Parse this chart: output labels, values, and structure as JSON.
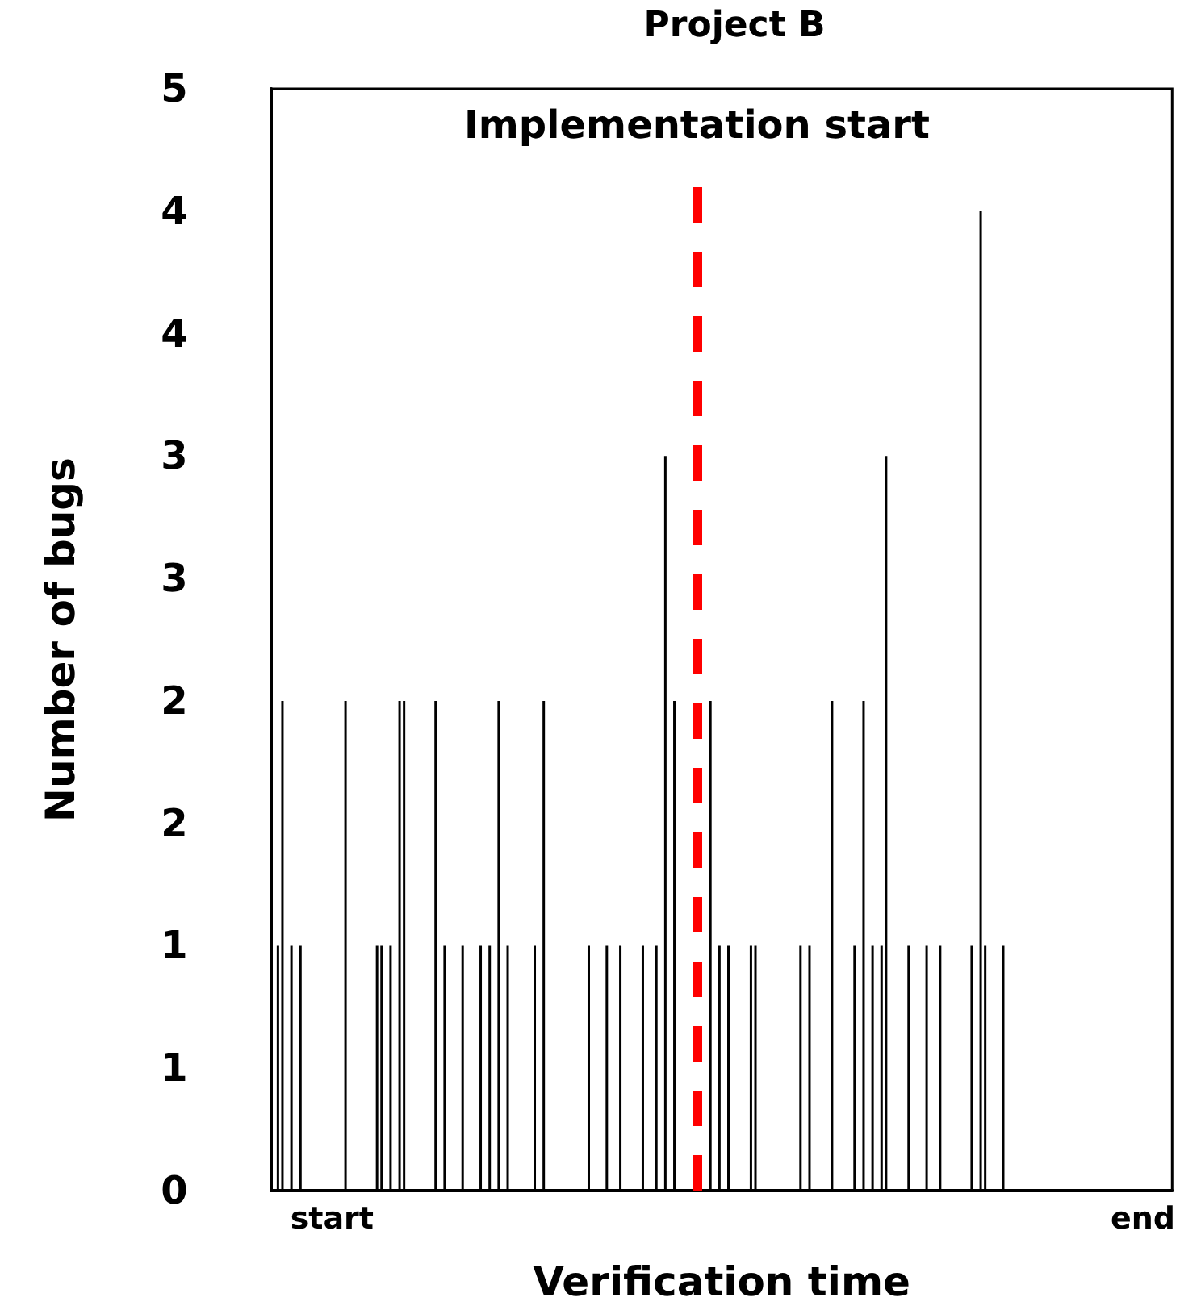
{
  "chart_data": {
    "type": "bar",
    "title": "Project B",
    "xlabel": "Verification time",
    "ylabel": "Number of bugs",
    "categories": [
      null,
      null,
      null,
      null,
      null,
      null,
      null,
      null,
      null,
      null,
      null,
      null,
      null,
      "start",
      null,
      null,
      null,
      null,
      null,
      null,
      null,
      null,
      null,
      null,
      null,
      null,
      null,
      null,
      null,
      null,
      null,
      null,
      null,
      null,
      null,
      null,
      null,
      null,
      null,
      null,
      null,
      null,
      null,
      null,
      null,
      null,
      null,
      null,
      null,
      null,
      null,
      null,
      null,
      null,
      null,
      null,
      null,
      null,
      null,
      null,
      null,
      null,
      null,
      null,
      null,
      null,
      null,
      null,
      null,
      null,
      null,
      null,
      null,
      null,
      null,
      null,
      null,
      null,
      null,
      null,
      null,
      null,
      null,
      null,
      null,
      null,
      null,
      null,
      null,
      null,
      null,
      null,
      null,
      null,
      null,
      null,
      null,
      null,
      null,
      null,
      null,
      null,
      null,
      null,
      null,
      null,
      null,
      null,
      null,
      null,
      null,
      null,
      null,
      null,
      null,
      null,
      null,
      null,
      null,
      null,
      null,
      null,
      null,
      null,
      null,
      null,
      null,
      null,
      null,
      null,
      null,
      null,
      null,
      null,
      null,
      null,
      null,
      null,
      null,
      null,
      null,
      null,
      null,
      null,
      null,
      null,
      null,
      null,
      null,
      null,
      null,
      null,
      null,
      null,
      null,
      null,
      null,
      null,
      null,
      null,
      null,
      null,
      null,
      null,
      null,
      null,
      null,
      null,
      null,
      null,
      null,
      null,
      null,
      null,
      null,
      null,
      null,
      null,
      null,
      null,
      null,
      null,
      null,
      null,
      null,
      null,
      null,
      null,
      null,
      null,
      null,
      null,
      null,
      "end",
      null,
      null,
      null,
      null,
      null,
      null
    ],
    "values": [
      0,
      1,
      2,
      0,
      1,
      0,
      1,
      0,
      0,
      0,
      0,
      0,
      0,
      0,
      0,
      0,
      2,
      0,
      0,
      0,
      0,
      0,
      0,
      1,
      1,
      0,
      1,
      0,
      2,
      2,
      0,
      0,
      0,
      0,
      0,
      0,
      2,
      0,
      1,
      0,
      0,
      0,
      1,
      0,
      0,
      0,
      1,
      0,
      1,
      0,
      2,
      0,
      1,
      0,
      0,
      0,
      0,
      0,
      1,
      0,
      2,
      0,
      0,
      0,
      0,
      0,
      0,
      0,
      0,
      0,
      1,
      0,
      0,
      0,
      1,
      0,
      0,
      1,
      0,
      0,
      0,
      0,
      1,
      0,
      0,
      1,
      0,
      3,
      0,
      2,
      0,
      0,
      0,
      0,
      0,
      0,
      0,
      2,
      0,
      1,
      0,
      1,
      0,
      0,
      0,
      0,
      1,
      1,
      0,
      0,
      0,
      0,
      0,
      0,
      0,
      0,
      0,
      1,
      0,
      1,
      0,
      0,
      0,
      0,
      2,
      0,
      0,
      0,
      0,
      1,
      0,
      2,
      0,
      1,
      0,
      1,
      3,
      0,
      0,
      0,
      0,
      1,
      0,
      0,
      0,
      1,
      0,
      0,
      1,
      0,
      0,
      0,
      0,
      0,
      0,
      1,
      0,
      4,
      1,
      0,
      0,
      0,
      1,
      0,
      0,
      0,
      0,
      0,
      0,
      0,
      0,
      0,
      0,
      0,
      0,
      0,
      0,
      0,
      0,
      0,
      0,
      0,
      0,
      0,
      0,
      0,
      0,
      0,
      0,
      0,
      0,
      0,
      0,
      0,
      0,
      0,
      0,
      0,
      0,
      0
    ],
    "color": "#000000",
    "ylim": [
      0,
      4.5
    ],
    "yticks": [
      {
        "value": 0,
        "label": "0"
      },
      {
        "value": 0.5,
        "label": "1"
      },
      {
        "value": 1,
        "label": "1"
      },
      {
        "value": 1.5,
        "label": "2"
      },
      {
        "value": 2,
        "label": "2"
      },
      {
        "value": 2.5,
        "label": "3"
      },
      {
        "value": 3,
        "label": "3"
      },
      {
        "value": 3.5,
        "label": "4"
      },
      {
        "value": 4,
        "label": "4"
      },
      {
        "value": 4.5,
        "label": "5"
      }
    ],
    "annotations": [
      "Implementation start"
    ],
    "grid": false
  }
}
